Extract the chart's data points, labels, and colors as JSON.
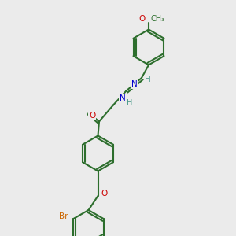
{
  "bg_color": "#ebebeb",
  "bond_color": "#2d6e2d",
  "bond_lw": 1.5,
  "atom_colors": {
    "O": "#cc0000",
    "N": "#0000cc",
    "Br": "#cc6600",
    "H": "#4a9a8a",
    "C": "#2d6e2d"
  },
  "font_size": 7.5,
  "title": ""
}
